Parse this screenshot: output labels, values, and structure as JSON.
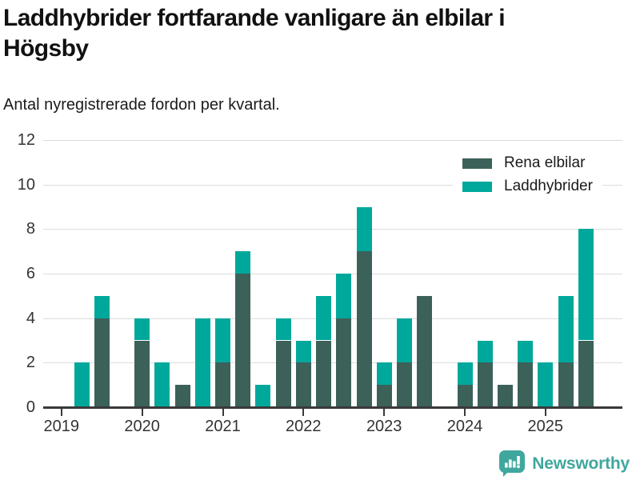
{
  "header": {
    "title_lines": [
      "Laddhybrider fortfarande vanligare än elbilar i",
      "Högsby"
    ],
    "title": "Laddhybrider fortfarande vanligare än elbilar i Högsby",
    "subtitle": "Antal nyregistrerade fordon per kvartal."
  },
  "colors": {
    "elbilar": "#3c6159",
    "laddhybrider": "#00a89c",
    "grid": "#dcdcdc",
    "axis": "#3a3a3a",
    "brand": "#3fa79d"
  },
  "legend": {
    "items": [
      {
        "label": "Rena elbilar",
        "color_key": "elbilar"
      },
      {
        "label": "Laddhybrider",
        "color_key": "laddhybrider"
      }
    ]
  },
  "chart_data": {
    "type": "bar",
    "stacked": true,
    "x": [
      "2019 K1",
      "2019 K2",
      "2019 K3",
      "2019 K4",
      "2020 K1",
      "2020 K2",
      "2020 K3",
      "2020 K4",
      "2021 K1",
      "2021 K2",
      "2021 K3",
      "2021 K4",
      "2022 K1",
      "2022 K2",
      "2022 K3",
      "2022 K4",
      "2023 K1",
      "2023 K2",
      "2023 K3",
      "2023 K4",
      "2024 K1",
      "2024 K2",
      "2024 K3",
      "2024 K4",
      "2025 K1",
      "2025 K2",
      "2025 K3"
    ],
    "series": [
      {
        "name": "Rena elbilar",
        "color_key": "elbilar",
        "values": [
          0,
          0,
          4,
          0,
          3,
          0,
          1,
          0,
          2,
          6,
          0,
          3,
          2,
          3,
          4,
          7,
          1,
          2,
          5,
          0,
          1,
          2,
          1,
          2,
          0,
          2,
          3
        ]
      },
      {
        "name": "Laddhybrider",
        "color_key": "laddhybrider",
        "values": [
          0,
          2,
          1,
          0,
          1,
          2,
          0,
          4,
          2,
          1,
          1,
          1,
          1,
          2,
          2,
          2,
          1,
          2,
          0,
          0,
          1,
          1,
          0,
          1,
          2,
          3,
          5
        ]
      }
    ],
    "title": "Laddhybrider fortfarande vanligare än elbilar i Högsby",
    "xlabel": "",
    "ylabel": "",
    "ylim": [
      0,
      12
    ],
    "yticks": [
      0,
      2,
      4,
      6,
      8,
      10,
      12
    ],
    "year_ticks": [
      "2019",
      "2020",
      "2021",
      "2022",
      "2023",
      "2024",
      "2025"
    ],
    "grid": true,
    "legend_position": "top-right"
  },
  "footer": {
    "brand": "Newsworthy",
    "logo_icon": "speech-bubble-bar-chart"
  }
}
